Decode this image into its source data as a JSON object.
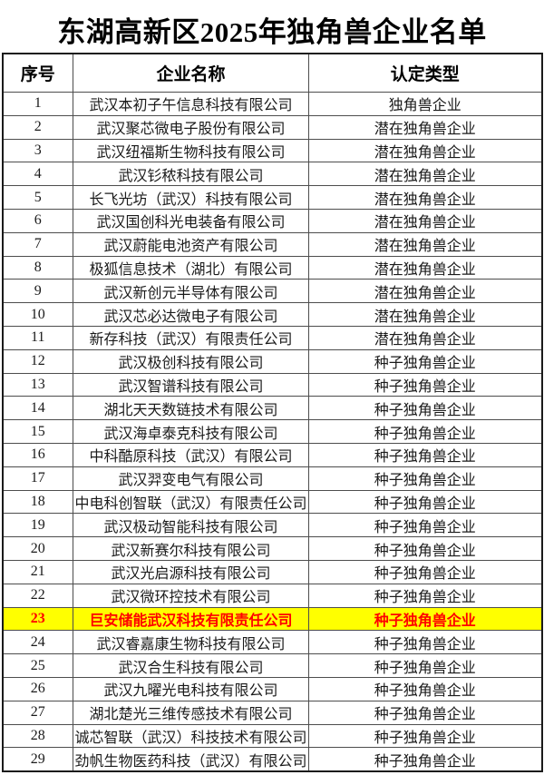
{
  "title": "东湖高新区2025年独角兽企业名单",
  "colors": {
    "highlight_background": "#ffff00",
    "highlight_text": "#ff0000",
    "body_text": "#1a1a1a"
  },
  "table": {
    "headers": {
      "no": "序号",
      "name": "企业名称",
      "type": "认定类型"
    },
    "rows": [
      {
        "no": "1",
        "name": "武汉本初子午信息科技有限公司",
        "type": "独角兽企业",
        "highlighted": false
      },
      {
        "no": "2",
        "name": "武汉聚芯微电子股份有限公司",
        "type": "潜在独角兽企业",
        "highlighted": false
      },
      {
        "no": "3",
        "name": "武汉纽福斯生物科技有限公司",
        "type": "潜在独角兽企业",
        "highlighted": false
      },
      {
        "no": "4",
        "name": "武汉钐秾科技有限公司",
        "type": "潜在独角兽企业",
        "highlighted": false
      },
      {
        "no": "5",
        "name": "长飞光坊（武汉）科技有限公司",
        "type": "潜在独角兽企业",
        "highlighted": false
      },
      {
        "no": "6",
        "name": "武汉国创科光电装备有限公司",
        "type": "潜在独角兽企业",
        "highlighted": false
      },
      {
        "no": "7",
        "name": "武汉蔚能电池资产有限公司",
        "type": "潜在独角兽企业",
        "highlighted": false
      },
      {
        "no": "8",
        "name": "极狐信息技术（湖北）有限公司",
        "type": "潜在独角兽企业",
        "highlighted": false
      },
      {
        "no": "9",
        "name": "武汉新创元半导体有限公司",
        "type": "潜在独角兽企业",
        "highlighted": false
      },
      {
        "no": "10",
        "name": "武汉芯必达微电子有限公司",
        "type": "潜在独角兽企业",
        "highlighted": false
      },
      {
        "no": "11",
        "name": "新存科技（武汉）有限责任公司",
        "type": "潜在独角兽企业",
        "highlighted": false
      },
      {
        "no": "12",
        "name": "武汉极创科技有限公司",
        "type": "种子独角兽企业",
        "highlighted": false
      },
      {
        "no": "13",
        "name": "武汉智谱科技有限公司",
        "type": "种子独角兽企业",
        "highlighted": false
      },
      {
        "no": "14",
        "name": "湖北天天数链技术有限公司",
        "type": "种子独角兽企业",
        "highlighted": false
      },
      {
        "no": "15",
        "name": "武汉海卓泰克科技有限公司",
        "type": "种子独角兽企业",
        "highlighted": false
      },
      {
        "no": "16",
        "name": "中科酷原科技（武汉）有限公司",
        "type": "种子独角兽企业",
        "highlighted": false
      },
      {
        "no": "17",
        "name": "武汉羿变电气有限公司",
        "type": "种子独角兽企业",
        "highlighted": false
      },
      {
        "no": "18",
        "name": "中电科创智联（武汉）有限责任公司",
        "type": "种子独角兽企业",
        "highlighted": false
      },
      {
        "no": "19",
        "name": "武汉极动智能科技有限公司",
        "type": "种子独角兽企业",
        "highlighted": false
      },
      {
        "no": "20",
        "name": "武汉新赛尔科技有限公司",
        "type": "种子独角兽企业",
        "highlighted": false
      },
      {
        "no": "21",
        "name": "武汉光启源科技有限公司",
        "type": "种子独角兽企业",
        "highlighted": false
      },
      {
        "no": "22",
        "name": "武汉微环控技术有限公司",
        "type": "种子独角兽企业",
        "highlighted": false
      },
      {
        "no": "23",
        "name": "巨安储能武汉科技有限责任公司",
        "type": "种子独角兽企业",
        "highlighted": true
      },
      {
        "no": "24",
        "name": "武汉睿嘉康生物科技有限公司",
        "type": "种子独角兽企业",
        "highlighted": false
      },
      {
        "no": "25",
        "name": "武汉合生科技有限公司",
        "type": "种子独角兽企业",
        "highlighted": false
      },
      {
        "no": "26",
        "name": "武汉九曜光电科技有限公司",
        "type": "种子独角兽企业",
        "highlighted": false
      },
      {
        "no": "27",
        "name": "湖北楚光三维传感技术有限公司",
        "type": "种子独角兽企业",
        "highlighted": false
      },
      {
        "no": "28",
        "name": "诚芯智联（武汉）科技技术有限公司",
        "type": "种子独角兽企业",
        "highlighted": false
      },
      {
        "no": "29",
        "name": "劲帆生物医药科技（武汉）有限公司",
        "type": "种子独角兽企业",
        "highlighted": false
      }
    ]
  }
}
